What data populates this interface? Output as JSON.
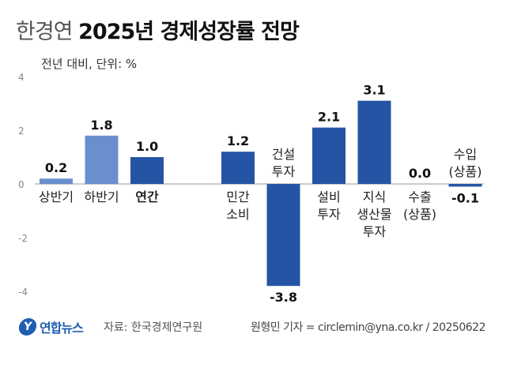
{
  "title": {
    "source": "한경연",
    "main": "2025년 경제성장률 전망"
  },
  "unit_label": "전년 대비, 단위: %",
  "footer": {
    "logo_text": "연합뉴스",
    "source": "자료: 한국경제연구원",
    "credit": "원형민 기자 = circlemin@yna.co.kr / 20250622"
  },
  "colors": {
    "light": "#6a8fcf",
    "dark": "#2554a4",
    "axis": "#999999"
  },
  "chart_data": {
    "type": "bar",
    "ylim": [
      -4,
      4
    ],
    "yticks": [
      4,
      2,
      0,
      -2,
      -4
    ],
    "grid": false,
    "categories": [
      [
        "상반기"
      ],
      [
        "하반기"
      ],
      [
        "연간"
      ],
      [
        "민간",
        "소비"
      ],
      [
        "건설",
        "투자"
      ],
      [
        "설비",
        "투자"
      ],
      [
        "지식",
        "생산물",
        "투자"
      ],
      [
        "수출",
        "(상품)"
      ],
      [
        "수입",
        "(상품)"
      ]
    ],
    "values": [
      0.2,
      1.8,
      1.0,
      1.2,
      -3.8,
      2.1,
      3.1,
      0.0,
      -0.1
    ],
    "value_labels": [
      "0.2",
      "1.8",
      "1.0",
      "1.2",
      "-3.8",
      "2.1",
      "3.1",
      "0.0",
      "-0.1"
    ],
    "bar_color": [
      "light",
      "light",
      "dark",
      "dark",
      "dark",
      "dark",
      "dark",
      "dark",
      "dark"
    ],
    "bold_category": [
      false,
      false,
      true,
      false,
      false,
      false,
      false,
      false,
      false
    ],
    "group": [
      0,
      0,
      0,
      1,
      1,
      1,
      1,
      1,
      1
    ]
  }
}
